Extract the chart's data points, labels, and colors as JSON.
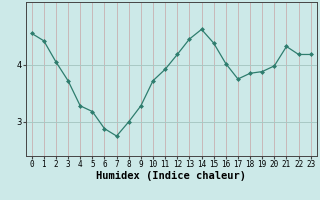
{
  "x": [
    0,
    1,
    2,
    3,
    4,
    5,
    6,
    7,
    8,
    9,
    10,
    11,
    12,
    13,
    14,
    15,
    16,
    17,
    18,
    19,
    20,
    21,
    22,
    23
  ],
  "y": [
    4.55,
    4.42,
    4.05,
    3.72,
    3.28,
    3.18,
    2.88,
    2.75,
    3.0,
    3.28,
    3.72,
    3.92,
    4.18,
    4.45,
    4.62,
    4.38,
    4.02,
    3.75,
    3.85,
    3.88,
    3.98,
    4.32,
    4.18,
    4.18
  ],
  "line_color": "#2e7d6e",
  "marker": "D",
  "marker_size": 2.0,
  "bg_color": "#cce9e8",
  "vgrid_color": "#c8b8b8",
  "hgrid_color": "#a8c8c4",
  "xlabel": "Humidex (Indice chaleur)",
  "yticks": [
    3,
    4
  ],
  "ylim": [
    2.4,
    5.1
  ],
  "xlim": [
    -0.5,
    23.5
  ],
  "xlabel_fontsize": 7.5,
  "tick_fontsize": 5.5
}
